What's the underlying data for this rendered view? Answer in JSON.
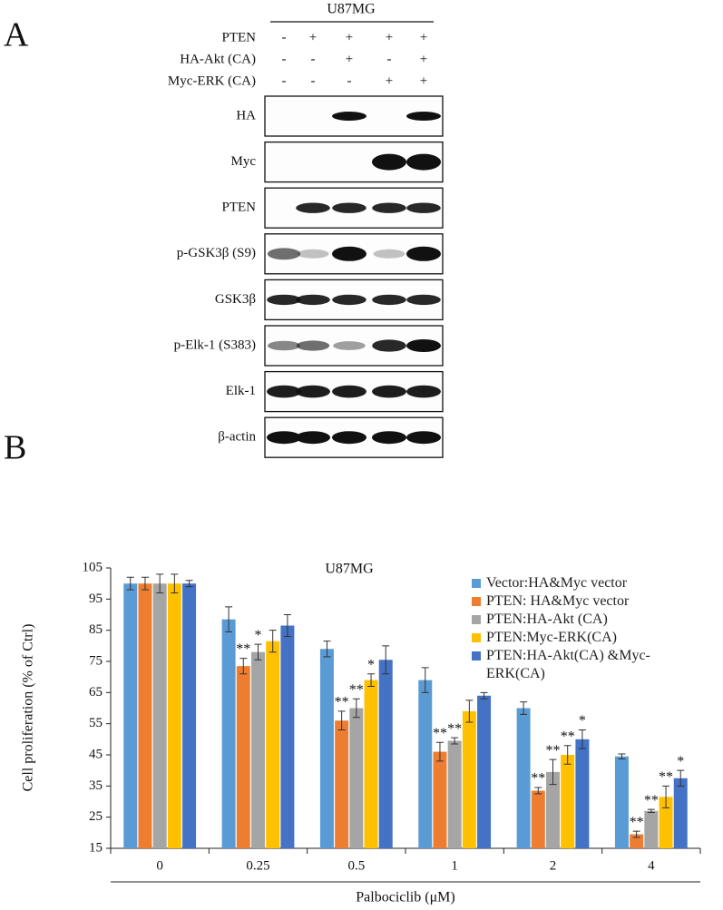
{
  "panel_a": {
    "panel_label": "A",
    "cell_line": "U87MG",
    "conditions": [
      {
        "label": "PTEN",
        "signs": [
          "-",
          "+",
          "+",
          "+",
          "+"
        ]
      },
      {
        "label": "HA-Akt (CA)",
        "signs": [
          "-",
          "-",
          "+",
          "-",
          "+"
        ]
      },
      {
        "label": "Myc-ERK (CA)",
        "signs": [
          "-",
          "-",
          "-",
          "+",
          "+"
        ]
      }
    ],
    "blots": [
      "HA",
      "Myc",
      "PTEN",
      "p-GSK3β (S9)",
      "GSK3β",
      "p-Elk-1 (S383)",
      "Elk-1",
      "β-actin"
    ]
  },
  "panel_b_label": "B",
  "chart_data": {
    "type": "bar",
    "title": "U87MG",
    "x_label": "Palbociclib (μM)",
    "y_label": "Cell proliferation (% of Ctrl)",
    "categories": [
      "0",
      "0.25",
      "0.5",
      "1",
      "2",
      "4"
    ],
    "ylim": [
      15,
      105
    ],
    "yticks": [
      15,
      25,
      35,
      45,
      55,
      65,
      75,
      85,
      95,
      105
    ],
    "series": [
      {
        "name": "Vector:HA&Myc vector",
        "color": "#5b9bd5",
        "values": [
          100,
          88.5,
          79,
          69,
          60,
          44.5
        ],
        "errors": [
          2,
          4,
          2.5,
          4,
          2,
          0.8
        ],
        "annotations": [
          null,
          null,
          null,
          null,
          null,
          null
        ]
      },
      {
        "name": "PTEN: HA&Myc vector",
        "color": "#ed7d31",
        "values": [
          100,
          73.5,
          56,
          46,
          33.5,
          19.5
        ],
        "errors": [
          2,
          2.5,
          3,
          3,
          1,
          1
        ],
        "annotations": [
          null,
          "**",
          "**",
          "**",
          "**",
          "**"
        ]
      },
      {
        "name": "PTEN:HA-Akt (CA)",
        "color": "#a5a5a5",
        "values": [
          100,
          78,
          60,
          49.5,
          39.5,
          27
        ],
        "errors": [
          3,
          2.5,
          3,
          1,
          4,
          0.5
        ],
        "annotations": [
          null,
          "*",
          "**",
          "**",
          "**",
          "**"
        ]
      },
      {
        "name": "PTEN:Myc-ERK(CA)",
        "color": "#ffc000",
        "values": [
          100,
          81.5,
          69,
          59,
          45,
          31.5
        ],
        "errors": [
          3,
          3.5,
          2,
          3.5,
          3,
          3.5
        ],
        "annotations": [
          null,
          null,
          "*",
          null,
          "**",
          "**"
        ]
      },
      {
        "name": "PTEN:HA-Akt(CA) &Myc-ERK(CA)",
        "color": "#4472c4",
        "values": [
          100,
          86.5,
          75.5,
          64,
          50,
          37.5
        ],
        "errors": [
          1,
          3.5,
          4.5,
          1,
          3,
          2.5
        ],
        "annotations": [
          null,
          null,
          null,
          null,
          "*",
          "*"
        ]
      }
    ]
  }
}
